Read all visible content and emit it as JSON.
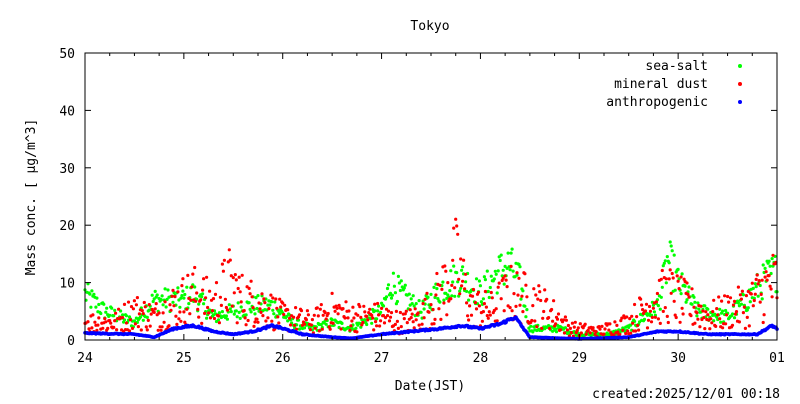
{
  "chart_data": {
    "type": "scatter",
    "title": "Tokyo",
    "xlabel": "Date(JST)",
    "ylabel": "Mass conc. [ μg/m^3]",
    "footer": "created:2025/12/01 00:18",
    "xlim": [
      0,
      7
    ],
    "ylim": [
      0,
      50
    ],
    "x_unit": "days since 24th 00:00 JST",
    "x_ticks": [
      0,
      1,
      2,
      3,
      4,
      5,
      6,
      7
    ],
    "x_tick_labels": [
      "24",
      "25",
      "26",
      "27",
      "28",
      "29",
      "30",
      "01"
    ],
    "y_ticks": [
      0,
      10,
      20,
      30,
      40,
      50
    ],
    "y_tick_labels": [
      "0",
      "10",
      "20",
      "30",
      "40",
      "50"
    ],
    "legend_position": "top-right",
    "series": [
      {
        "name": "sea-salt",
        "color": "#00ff00",
        "points": [
          [
            0,
            8
          ],
          [
            0.2,
            5
          ],
          [
            0.5,
            3
          ],
          [
            0.7,
            7
          ],
          [
            1.0,
            7
          ],
          [
            1.1,
            8
          ],
          [
            1.3,
            4
          ],
          [
            1.5,
            5
          ],
          [
            1.7,
            6
          ],
          [
            1.9,
            6
          ],
          [
            2.1,
            3
          ],
          [
            2.3,
            2
          ],
          [
            2.5,
            3
          ],
          [
            2.7,
            2
          ],
          [
            3.0,
            5
          ],
          [
            3.1,
            10
          ],
          [
            3.2,
            8
          ],
          [
            3.4,
            5
          ],
          [
            3.6,
            9
          ],
          [
            3.8,
            11
          ],
          [
            4.0,
            8
          ],
          [
            4.2,
            12
          ],
          [
            4.3,
            13
          ],
          [
            4.4,
            10
          ],
          [
            4.5,
            2
          ],
          [
            4.8,
            2
          ],
          [
            5.0,
            1
          ],
          [
            5.3,
            1
          ],
          [
            5.5,
            2
          ],
          [
            5.8,
            6
          ],
          [
            5.9,
            14
          ],
          [
            6.0,
            10
          ],
          [
            6.2,
            5
          ],
          [
            6.5,
            4
          ],
          [
            6.7,
            7
          ],
          [
            6.9,
            11
          ],
          [
            7.0,
            12
          ]
        ]
      },
      {
        "name": "mineral dust",
        "color": "#ff0000",
        "points": [
          [
            0,
            3
          ],
          [
            0.3,
            3
          ],
          [
            0.5,
            5
          ],
          [
            0.7,
            4
          ],
          [
            0.9,
            6
          ],
          [
            1.1,
            8
          ],
          [
            1.3,
            6
          ],
          [
            1.45,
            10
          ],
          [
            1.6,
            7
          ],
          [
            1.8,
            6
          ],
          [
            2.0,
            4
          ],
          [
            2.3,
            3
          ],
          [
            2.5,
            5
          ],
          [
            2.7,
            4
          ],
          [
            3.0,
            4
          ],
          [
            3.2,
            3
          ],
          [
            3.4,
            4
          ],
          [
            3.6,
            8
          ],
          [
            3.75,
            13
          ],
          [
            3.9,
            6
          ],
          [
            4.1,
            5
          ],
          [
            4.3,
            8
          ],
          [
            4.5,
            7
          ],
          [
            4.7,
            5
          ],
          [
            4.9,
            2
          ],
          [
            5.2,
            1.5
          ],
          [
            5.5,
            3
          ],
          [
            5.7,
            6
          ],
          [
            5.9,
            8
          ],
          [
            6.1,
            6
          ],
          [
            6.3,
            4
          ],
          [
            6.5,
            5
          ],
          [
            6.7,
            6
          ],
          [
            6.9,
            9
          ],
          [
            7.0,
            10
          ]
        ]
      },
      {
        "name": "anthropogenic",
        "color": "#0000ff",
        "points": [
          [
            0,
            1.2
          ],
          [
            0.5,
            1.0
          ],
          [
            0.7,
            0.5
          ],
          [
            0.9,
            2
          ],
          [
            1.1,
            2.5
          ],
          [
            1.3,
            1.5
          ],
          [
            1.5,
            1
          ],
          [
            1.7,
            1.5
          ],
          [
            1.9,
            2.5
          ],
          [
            2.0,
            2
          ],
          [
            2.2,
            1
          ],
          [
            2.5,
            0.5
          ],
          [
            2.7,
            0.3
          ],
          [
            3.0,
            1
          ],
          [
            3.3,
            1.5
          ],
          [
            3.6,
            2
          ],
          [
            3.8,
            2.5
          ],
          [
            4.0,
            2
          ],
          [
            4.2,
            2.8
          ],
          [
            4.35,
            4
          ],
          [
            4.5,
            0.5
          ],
          [
            5.0,
            0.2
          ],
          [
            5.5,
            0.5
          ],
          [
            5.8,
            1.5
          ],
          [
            6.0,
            1.5
          ],
          [
            6.3,
            1
          ],
          [
            6.6,
            1
          ],
          [
            6.8,
            1
          ],
          [
            6.95,
            2.5
          ],
          [
            7.0,
            2
          ]
        ]
      }
    ]
  }
}
